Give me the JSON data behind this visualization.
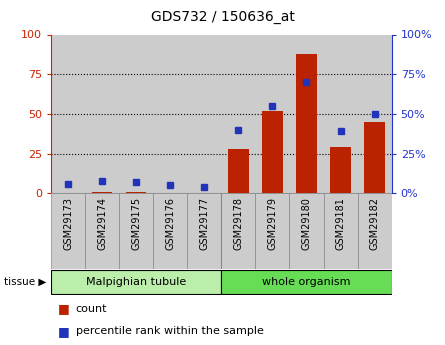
{
  "title": "GDS732 / 150636_at",
  "categories": [
    "GSM29173",
    "GSM29174",
    "GSM29175",
    "GSM29176",
    "GSM29177",
    "GSM29178",
    "GSM29179",
    "GSM29180",
    "GSM29181",
    "GSM29182"
  ],
  "count_values": [
    0,
    1,
    1,
    0,
    0,
    28,
    52,
    88,
    29,
    45
  ],
  "percentile_values": [
    6,
    8,
    7,
    5,
    4,
    40,
    55,
    70,
    39,
    50
  ],
  "bar_color": "#bb2200",
  "dot_color": "#2233bb",
  "tissue_groups": [
    {
      "label": "Malpighian tubule",
      "start": 0,
      "end": 5,
      "color": "#bbeeaa"
    },
    {
      "label": "whole organism",
      "start": 5,
      "end": 10,
      "color": "#66dd55"
    }
  ],
  "ylim": [
    0,
    100
  ],
  "yticks": [
    0,
    25,
    50,
    75,
    100
  ],
  "bar_width": 0.6,
  "left_axis_color": "#cc2200",
  "right_axis_color": "#2233cc",
  "col_bg_color": "#cccccc",
  "border_color": "#888888"
}
